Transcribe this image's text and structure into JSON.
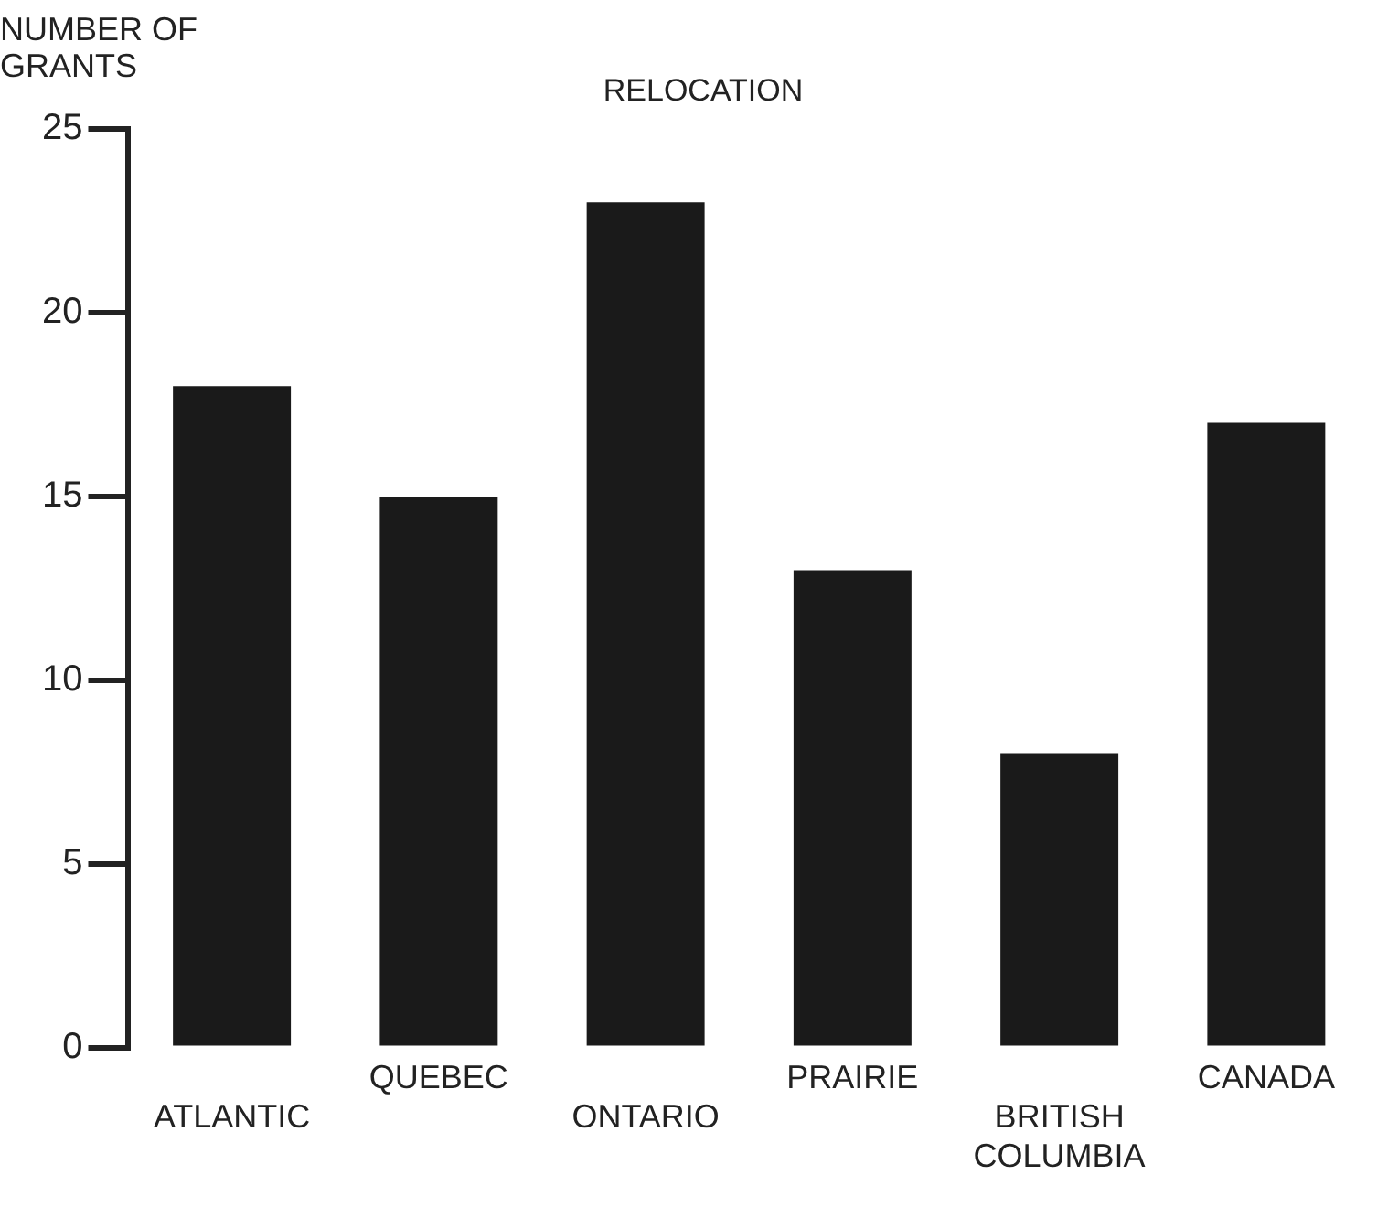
{
  "chart_data": {
    "type": "bar",
    "title": "RELOCATION",
    "ylabel": "NUMBER OF GRANTS",
    "categories": [
      "ATLANTIC",
      "QUEBEC",
      "ONTARIO",
      "PRAIRIE",
      "BRITISH COLUMBIA",
      "CANADA"
    ],
    "values": [
      18,
      15,
      23,
      13,
      8,
      17
    ],
    "color": "#1a1a1a",
    "ylim": [
      0,
      25
    ],
    "yticks": [
      0,
      5,
      10,
      15,
      20,
      25
    ],
    "grid": false,
    "legend": false
  }
}
